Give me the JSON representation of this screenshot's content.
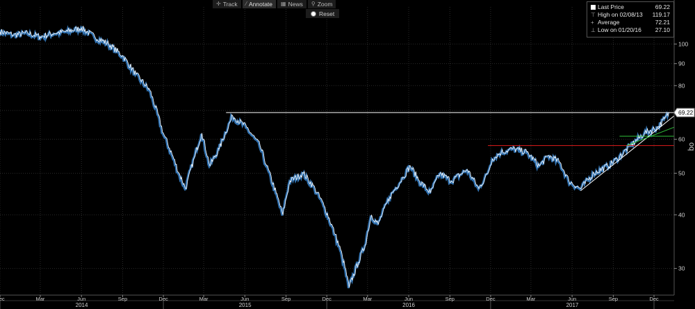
{
  "toolbar": {
    "track_label": "Track",
    "annotate_label": "Annotate",
    "news_label": "News",
    "zoom_label": "Zoom",
    "reset_label": "Reset"
  },
  "legend": {
    "last_price_label": "Last Price",
    "last_price_value": "69.22",
    "high_label": "High on 02/08/13",
    "high_value": "119.17",
    "average_label": "Average",
    "average_value": "72.21",
    "low_label": "Low on 01/20/16",
    "low_value": "27.10"
  },
  "colors": {
    "background": "#000000",
    "price_line": "#ffffff",
    "price_shadow": "#3a86d0",
    "grid": "#2a2a2a",
    "resistance_line": "#ffffff",
    "red_line": "#e11b1b",
    "green_line": "#2fbf3a",
    "trend_line": "#ffffff"
  },
  "chart_data": {
    "type": "line",
    "y_scale": "log",
    "ylim": [
      26,
      122
    ],
    "y_ticks": [
      30,
      40,
      50,
      60,
      70,
      80,
      90,
      100
    ],
    "y_ticks_shown": [
      30,
      40,
      50,
      60,
      80,
      90,
      100
    ],
    "ylabel": "oq",
    "last_price_label": "69.22",
    "x_months": [
      "Dec",
      "Mar",
      "Jun",
      "Sep",
      "Dec",
      "Mar",
      "Jun",
      "Sep",
      "Dec",
      "Mar",
      "Jun",
      "Sep",
      "Dec",
      "Mar",
      "Jun",
      "Sep",
      "Dec"
    ],
    "x_years": [
      "2014",
      "2015",
      "2016",
      "2017"
    ],
    "xlim": [
      "2013-12-01",
      "2018-01-15"
    ],
    "series": [
      {
        "values": [
          [
            "2013-12-01",
            107
          ],
          [
            "2014-01-01",
            105
          ],
          [
            "2014-02-01",
            106
          ],
          [
            "2014-03-01",
            104
          ],
          [
            "2014-04-01",
            106
          ],
          [
            "2014-05-01",
            107
          ],
          [
            "2014-06-01",
            109
          ],
          [
            "2014-07-01",
            104
          ],
          [
            "2014-08-01",
            100
          ],
          [
            "2014-09-01",
            94
          ],
          [
            "2014-10-01",
            85
          ],
          [
            "2014-11-01",
            78
          ],
          [
            "2014-12-01",
            62
          ],
          [
            "2015-01-05",
            50
          ],
          [
            "2015-01-20",
            46
          ],
          [
            "2015-02-10",
            55
          ],
          [
            "2015-02-25",
            62
          ],
          [
            "2015-03-15",
            52
          ],
          [
            "2015-04-05",
            57
          ],
          [
            "2015-05-05",
            68
          ],
          [
            "2015-06-05",
            64
          ],
          [
            "2015-07-05",
            58
          ],
          [
            "2015-07-20",
            52
          ],
          [
            "2015-08-10",
            45
          ],
          [
            "2015-08-25",
            40
          ],
          [
            "2015-09-10",
            48
          ],
          [
            "2015-10-10",
            50
          ],
          [
            "2015-11-05",
            46
          ],
          [
            "2015-11-25",
            42
          ],
          [
            "2015-12-20",
            36
          ],
          [
            "2016-01-05",
            32
          ],
          [
            "2016-01-20",
            27.1
          ],
          [
            "2016-02-10",
            31
          ],
          [
            "2016-02-25",
            34
          ],
          [
            "2016-03-10",
            40
          ],
          [
            "2016-03-25",
            38
          ],
          [
            "2016-04-20",
            44
          ],
          [
            "2016-05-20",
            49
          ],
          [
            "2016-06-05",
            52
          ],
          [
            "2016-06-25",
            48
          ],
          [
            "2016-07-20",
            45
          ],
          [
            "2016-08-10",
            50
          ],
          [
            "2016-09-05",
            48
          ],
          [
            "2016-10-10",
            51
          ],
          [
            "2016-11-05",
            46
          ],
          [
            "2016-11-25",
            50
          ],
          [
            "2016-12-05",
            54
          ],
          [
            "2016-12-25",
            56
          ],
          [
            "2017-01-20",
            57
          ],
          [
            "2017-02-20",
            56
          ],
          [
            "2017-03-20",
            52
          ],
          [
            "2017-04-10",
            55
          ],
          [
            "2017-05-05",
            53
          ],
          [
            "2017-05-25",
            48
          ],
          [
            "2017-06-20",
            46
          ],
          [
            "2017-07-20",
            50
          ],
          [
            "2017-08-20",
            52
          ],
          [
            "2017-09-10",
            54
          ],
          [
            "2017-10-10",
            58
          ],
          [
            "2017-11-10",
            62
          ],
          [
            "2017-12-10",
            64
          ],
          [
            "2017-12-25",
            67
          ],
          [
            "2018-01-05",
            69.22
          ]
        ]
      }
    ],
    "annotations": [
      {
        "kind": "horizontal",
        "color": "white",
        "y": 69.22,
        "x_start": "2015-04-20",
        "x_end": "2018-01-15"
      },
      {
        "kind": "horizontal",
        "color": "red",
        "y": 58,
        "x_start": "2016-11-25",
        "x_end": "2018-01-15"
      },
      {
        "kind": "horizontal",
        "color": "green",
        "y": 61,
        "x_start": "2017-09-15",
        "x_end": "2018-01-15"
      },
      {
        "kind": "trend",
        "color": "white",
        "x_start": "2017-06-20",
        "y_start": 45.5,
        "x_end": "2018-01-15",
        "y_end": 68
      },
      {
        "kind": "trend",
        "color": "green",
        "x_start": "2017-10-01",
        "y_start": 58,
        "x_end": "2018-01-15",
        "y_end": 64
      }
    ]
  }
}
